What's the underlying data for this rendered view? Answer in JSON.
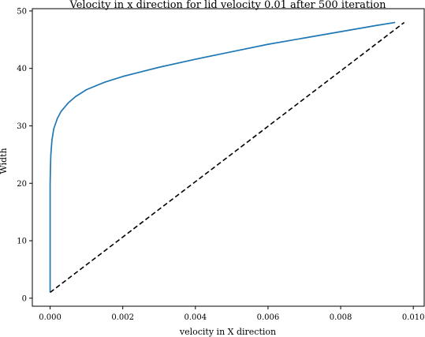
{
  "chart_data": {
    "type": "line",
    "title": "Velocity in x direction for lid velocity 0.01 after 500 iteration",
    "xlabel": "velocity in X direction",
    "ylabel": "Width",
    "xlim": [
      -0.00049,
      0.0103
    ],
    "ylim": [
      -1.4,
      50.4
    ],
    "grid": false,
    "x_ticks": [
      0.0,
      0.002,
      0.004,
      0.006,
      0.008,
      0.01
    ],
    "x_tick_labels": [
      "0.000",
      "0.002",
      "0.004",
      "0.006",
      "0.008",
      "0.010"
    ],
    "y_ticks": [
      0,
      10,
      20,
      30,
      40,
      50
    ],
    "y_tick_labels": [
      "0",
      "10",
      "20",
      "30",
      "40",
      "50"
    ],
    "series": [
      {
        "style": "solid",
        "color": "#1f77b4",
        "x": [
          0.0,
          0.0,
          0.0,
          1e-05,
          2e-05,
          5e-05,
          0.0001,
          0.0002,
          0.0003,
          0.0005,
          0.0007,
          0.001,
          0.0015,
          0.002,
          0.0025,
          0.003,
          0.004,
          0.005,
          0.006,
          0.007,
          0.008,
          0.009,
          0.0095
        ],
        "y": [
          1,
          10,
          20,
          23,
          25,
          27.5,
          29.5,
          31.3,
          32.5,
          34.0,
          35.1,
          36.3,
          37.6,
          38.6,
          39.4,
          40.2,
          41.6,
          42.9,
          44.2,
          45.3,
          46.4,
          47.5,
          48.0
        ]
      },
      {
        "style": "dashed",
        "color": "#000000",
        "x": [
          0.0,
          0.00975
        ],
        "y": [
          1,
          48
        ]
      }
    ]
  }
}
